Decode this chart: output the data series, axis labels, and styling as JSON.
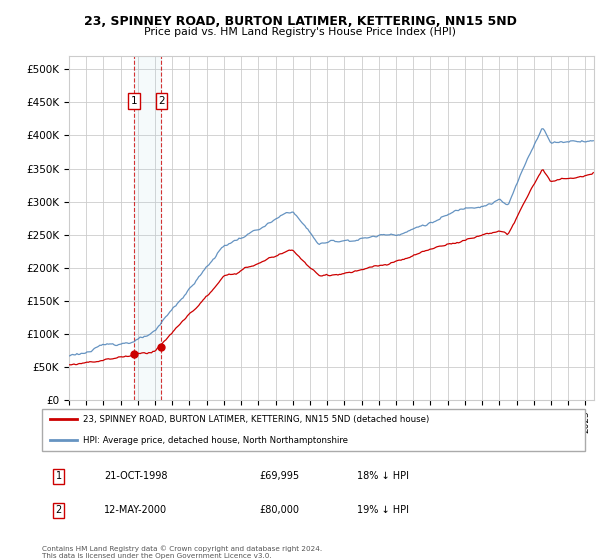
{
  "title": "23, SPINNEY ROAD, BURTON LATIMER, KETTERING, NN15 5ND",
  "subtitle": "Price paid vs. HM Land Registry's House Price Index (HPI)",
  "ylabel_ticks": [
    "£0",
    "£50K",
    "£100K",
    "£150K",
    "£200K",
    "£250K",
    "£300K",
    "£350K",
    "£400K",
    "£450K",
    "£500K"
  ],
  "ytick_values": [
    0,
    50000,
    100000,
    150000,
    200000,
    250000,
    300000,
    350000,
    400000,
    450000,
    500000
  ],
  "ylim": [
    0,
    520000
  ],
  "xlim_start": 1995.0,
  "xlim_end": 2025.5,
  "legend_line1": "23, SPINNEY ROAD, BURTON LATIMER, KETTERING, NN15 5ND (detached house)",
  "legend_line2": "HPI: Average price, detached house, North Northamptonshire",
  "transaction1_label": "1",
  "transaction1_date": "21-OCT-1998",
  "transaction1_price": "£69,995",
  "transaction1_hpi": "18% ↓ HPI",
  "transaction2_label": "2",
  "transaction2_date": "12-MAY-2000",
  "transaction2_price": "£80,000",
  "transaction2_hpi": "19% ↓ HPI",
  "footnote": "Contains HM Land Registry data © Crown copyright and database right 2024.\nThis data is licensed under the Open Government Licence v3.0.",
  "line_color_red": "#cc0000",
  "line_color_blue": "#5588bb",
  "grid_color": "#cccccc",
  "bg_color": "#ffffff",
  "transaction1_x": 1998.79,
  "transaction2_x": 2000.37,
  "transaction1_y": 69995,
  "transaction2_y": 80000
}
